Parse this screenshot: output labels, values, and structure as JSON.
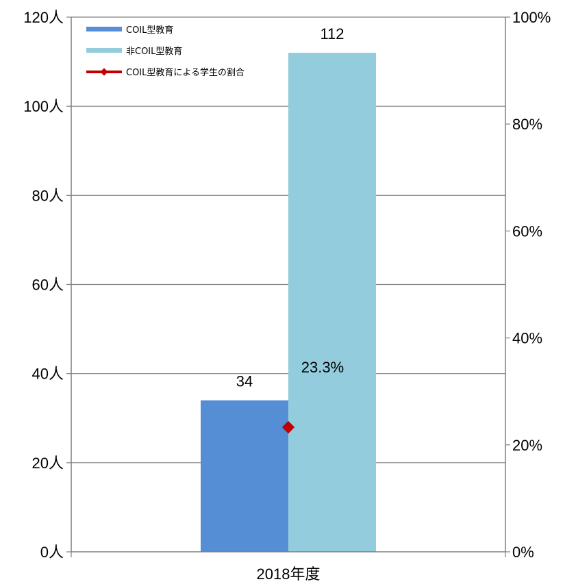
{
  "chart_data": {
    "type": "bar",
    "categories": [
      "2018年度"
    ],
    "series": [
      {
        "name": "COIL型教育",
        "values": [
          34
        ],
        "color": "#558ED5",
        "axis": "left",
        "kind": "bar",
        "label": "34"
      },
      {
        "name": "非COIL型教育",
        "values": [
          112
        ],
        "color": "#93CDDD",
        "axis": "left",
        "kind": "bar",
        "label": "112"
      },
      {
        "name": "COIL型教育による学生の割合",
        "values": [
          23.3
        ],
        "color": "#C00000",
        "axis": "right",
        "kind": "line-marker",
        "label": "23.3%"
      }
    ],
    "yaxis_left": {
      "min": 0,
      "max": 120,
      "step": 20,
      "unit_suffix": "人",
      "ticks": [
        "0人",
        "20人",
        "40人",
        "60人",
        "80人",
        "100人",
        "120人"
      ]
    },
    "yaxis_right": {
      "min": 0,
      "max": 100,
      "step": 20,
      "unit_suffix": "%",
      "ticks": [
        "0%",
        "20%",
        "40%",
        "60%",
        "80%",
        "100%"
      ]
    },
    "grid": true,
    "legend_position": "top-left"
  }
}
